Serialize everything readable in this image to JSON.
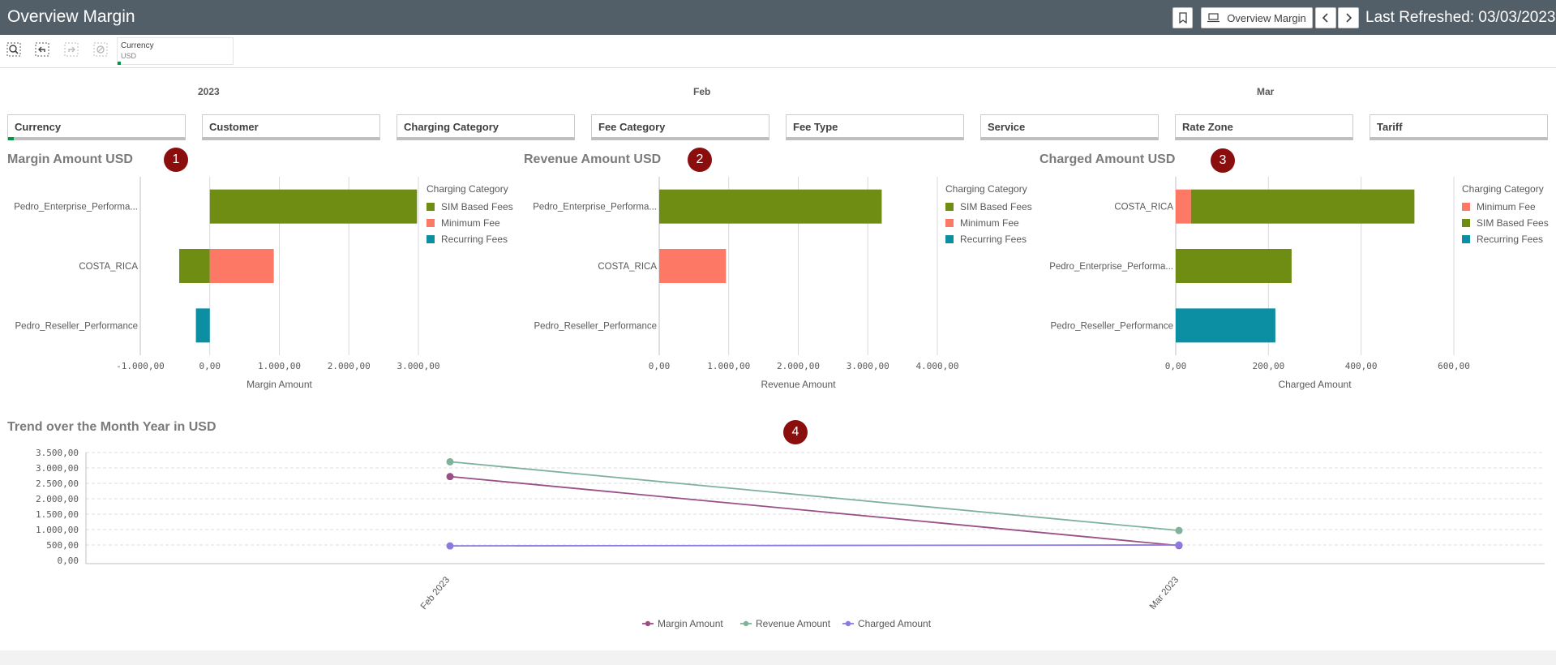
{
  "header": {
    "title": "Overview Margin",
    "bookmark_icon": "bookmark-icon",
    "sheet_button_label": "Overview Margin",
    "last_refreshed": "Last Refreshed: 03/03/2023"
  },
  "toolbar": {
    "currency_label": "Currency",
    "currency_value": "USD"
  },
  "periods": [
    "2023",
    "Feb",
    "Mar"
  ],
  "filters": [
    "Currency",
    "Customer",
    "Charging Category",
    "Fee Category",
    "Fee Type",
    "Service",
    "Rate Zone",
    "Tariff"
  ],
  "colors": {
    "sim": "#6f8c13",
    "minimum": "#fe7866",
    "recurring": "#0c8ea3",
    "margin_line": "#9b4f87",
    "revenue_line": "#7fb29b",
    "charged_line": "#8b7be0",
    "badge": "#8b0e0e"
  },
  "badges": [
    "1",
    "2",
    "3",
    "4"
  ],
  "chart_data": [
    {
      "type": "bar",
      "orientation": "horizontal",
      "stacked": true,
      "title": "Margin Amount USD",
      "xlabel": "Margin Amount",
      "xlim": [
        -1000,
        3000
      ],
      "xticks": [
        "-1.000,00",
        "0,00",
        "1.000,00",
        "2.000,00",
        "3.000,00"
      ],
      "legend_title": "Charging Category",
      "legend": [
        "SIM Based Fees",
        "Minimum Fee",
        "Recurring Fees"
      ],
      "categories": [
        "Pedro_Enterprise_Performa...",
        "COSTA_RICA",
        "Pedro_Reseller_Performance"
      ],
      "series": [
        {
          "name": "SIM Based Fees",
          "values": [
            2980,
            -440,
            0
          ]
        },
        {
          "name": "Minimum Fee",
          "values": [
            0,
            920,
            0
          ]
        },
        {
          "name": "Recurring Fees",
          "values": [
            0,
            0,
            -200
          ]
        }
      ]
    },
    {
      "type": "bar",
      "orientation": "horizontal",
      "stacked": true,
      "title": "Revenue Amount USD",
      "xlabel": "Revenue Amount",
      "xlim": [
        0,
        4000
      ],
      "xticks": [
        "0,00",
        "1.000,00",
        "2.000,00",
        "3.000,00",
        "4.000,00"
      ],
      "legend_title": "Charging Category",
      "legend": [
        "SIM Based Fees",
        "Minimum Fee",
        "Recurring Fees"
      ],
      "categories": [
        "Pedro_Enterprise_Performa...",
        "COSTA_RICA",
        "Pedro_Reseller_Performance"
      ],
      "series": [
        {
          "name": "SIM Based Fees",
          "values": [
            3200,
            0,
            0
          ]
        },
        {
          "name": "Minimum Fee",
          "values": [
            0,
            960,
            0
          ]
        },
        {
          "name": "Recurring Fees",
          "values": [
            0,
            0,
            0
          ]
        }
      ]
    },
    {
      "type": "bar",
      "orientation": "horizontal",
      "stacked": true,
      "title": "Charged Amount USD",
      "xlabel": "Charged Amount",
      "xlim": [
        0,
        600
      ],
      "xticks": [
        "0,00",
        "200,00",
        "400,00",
        "600,00"
      ],
      "legend_title": "Charging Category",
      "legend": [
        "Minimum Fee",
        "SIM Based Fees",
        "Recurring Fees"
      ],
      "categories": [
        "COSTA_RICA",
        "Pedro_Enterprise_Performa...",
        "Pedro_Reseller_Performance"
      ],
      "series": [
        {
          "name": "Minimum Fee",
          "values": [
            33,
            0,
            0
          ]
        },
        {
          "name": "SIM Based Fees",
          "values": [
            482,
            250,
            0
          ]
        },
        {
          "name": "Recurring Fees",
          "values": [
            0,
            0,
            215
          ]
        }
      ]
    },
    {
      "type": "line",
      "title": "Trend over the Month Year in USD",
      "x": [
        "Feb 2023",
        "Mar 2023"
      ],
      "ylim": [
        0,
        3500
      ],
      "yticks": [
        "0,00",
        "500,00",
        "1.000,00",
        "1.500,00",
        "2.000,00",
        "2.500,00",
        "3.000,00",
        "3.500,00"
      ],
      "series": [
        {
          "name": "Margin Amount",
          "values": [
            2720,
            480
          ]
        },
        {
          "name": "Revenue Amount",
          "values": [
            3200,
            970
          ]
        },
        {
          "name": "Charged Amount",
          "values": [
            470,
            500
          ]
        }
      ]
    }
  ]
}
